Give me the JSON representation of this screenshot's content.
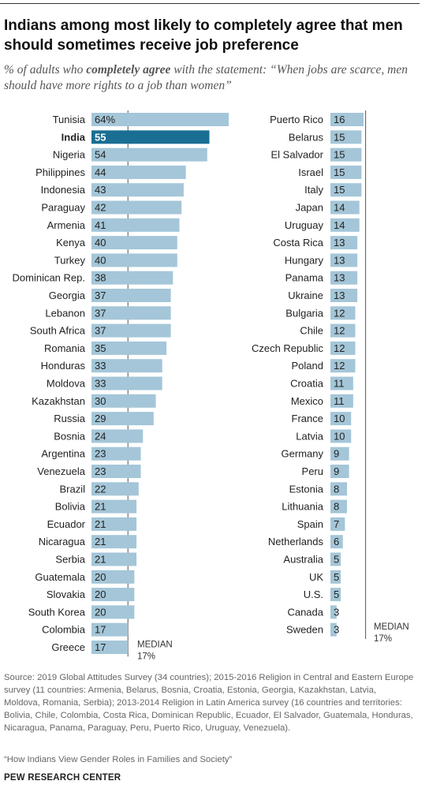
{
  "title": "Indians among most likely to completely agree that men should sometimes receive job preference",
  "subtitle": {
    "before": "% of adults who ",
    "bold": "completely agree",
    "after": " with the statement: “When jobs are scarce, men should have more rights to a job than women”"
  },
  "source": "Source: 2019 Global Attitudes Survey (34 countries); 2015-2016 Religion in Central and Eastern Europe survey (11 countries: Armenia, Belarus, Bosnia, Croatia, Estonia, Georgia, Kazakhstan, Latvia, Moldova, Romania, Serbia); 2013-2014 Religion in Latin America survey (16 countries and territories: Bolivia, Chile, Colombia, Costa Rica, Dominican Republic, Ecuador, El Salvador, Guatemala, Honduras, Nicaragua, Panama, Paraguay, Peru, Puerto Rico, Uruguay, Venezuela).",
  "note": "“How Indians View Gender Roles in Families and Society”",
  "brand": "PEW RESEARCH CENTER",
  "colors": {
    "bar": "#a4c6d8",
    "highlight": "#1a6e94",
    "median_line": "#555555"
  },
  "chart_data": {
    "type": "bar",
    "orientation": "horizontal",
    "unit": "%",
    "highlight": "India",
    "median_label": "MEDIAN",
    "median_value_label": "17%",
    "median": 17,
    "panels": [
      {
        "categories": [
          "Tunisia",
          "India",
          "Nigeria",
          "Philippines",
          "Indonesia",
          "Paraguay",
          "Armenia",
          "Kenya",
          "Turkey",
          "Dominican Rep.",
          "Georgia",
          "Lebanon",
          "South Africa",
          "Romania",
          "Honduras",
          "Moldova",
          "Kazakhstan",
          "Russia",
          "Bosnia",
          "Argentina",
          "Venezuela",
          "Brazil",
          "Bolivia",
          "Ecuador",
          "Nicaragua",
          "Serbia",
          "Guatemala",
          "Slovakia",
          "South Korea",
          "Colombia",
          "Greece"
        ],
        "values": [
          64,
          55,
          54,
          44,
          43,
          42,
          41,
          40,
          40,
          38,
          37,
          37,
          37,
          35,
          33,
          33,
          30,
          29,
          24,
          23,
          23,
          22,
          21,
          21,
          21,
          21,
          20,
          20,
          20,
          17,
          17
        ],
        "value_labels": [
          "64%",
          "55",
          "54",
          "44",
          "43",
          "42",
          "41",
          "40",
          "40",
          "38",
          "37",
          "37",
          "37",
          "35",
          "33",
          "33",
          "30",
          "29",
          "24",
          "23",
          "23",
          "22",
          "21",
          "21",
          "21",
          "21",
          "20",
          "20",
          "20",
          "17",
          "17"
        ]
      },
      {
        "categories": [
          "Puerto Rico",
          "Belarus",
          "El Salvador",
          "Israel",
          "Italy",
          "Japan",
          "Uruguay",
          "Costa Rica",
          "Hungary",
          "Panama",
          "Ukraine",
          "Bulgaria",
          "Chile",
          "Czech Republic",
          "Poland",
          "Croatia",
          "Mexico",
          "France",
          "Latvia",
          "Germany",
          "Peru",
          "Estonia",
          "Lithuania",
          "Spain",
          "Netherlands",
          "Australia",
          "UK",
          "U.S.",
          "Canada",
          "Sweden"
        ],
        "values": [
          16,
          15,
          15,
          15,
          15,
          14,
          14,
          13,
          13,
          13,
          13,
          12,
          12,
          12,
          12,
          11,
          11,
          10,
          10,
          9,
          9,
          8,
          8,
          7,
          6,
          5,
          5,
          5,
          3,
          3
        ],
        "value_labels": [
          "16",
          "15",
          "15",
          "15",
          "15",
          "14",
          "14",
          "13",
          "13",
          "13",
          "13",
          "12",
          "12",
          "12",
          "12",
          "11",
          "11",
          "10",
          "10",
          "9",
          "9",
          "8",
          "8",
          "7",
          "6",
          "5",
          "5",
          "5",
          "3",
          "3"
        ]
      }
    ]
  }
}
